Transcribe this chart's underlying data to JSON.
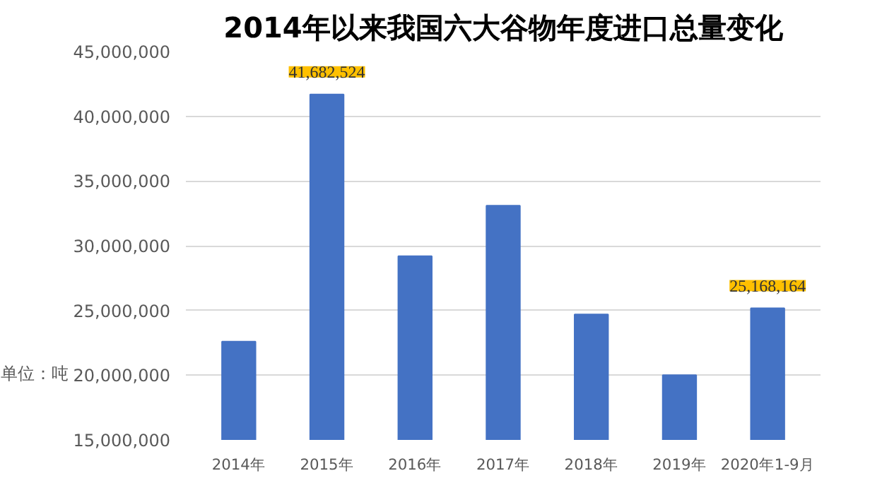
{
  "chart_data": {
    "type": "bar",
    "title": "2014年以来我国六大谷物年度进口总量变化",
    "categories": [
      "2014年",
      "2015年",
      "2016年",
      "2017年",
      "2018年",
      "2019年",
      "2020年1-9月"
    ],
    "values": [
      22600000,
      41682524,
      29200000,
      33100000,
      24700000,
      20000000,
      25168164
    ],
    "value_labels": [
      null,
      "41,682,524",
      null,
      null,
      null,
      null,
      "25,168,164"
    ],
    "color": "#4472c4",
    "ylim": [
      15000000,
      45000000
    ],
    "yticks": [
      {
        "value": 15000000,
        "label": "15,000,000"
      },
      {
        "value": 20000000,
        "label": "20,000,000"
      },
      {
        "value": 25000000,
        "label": "25,000,000"
      },
      {
        "value": 30000000,
        "label": "30,000,000"
      },
      {
        "value": 35000000,
        "label": "35,000,000"
      },
      {
        "value": 40000000,
        "label": "40,000,000"
      },
      {
        "value": 45000000,
        "label": "45,000,000"
      }
    ],
    "grid": "y",
    "annotations": [
      "单位：吨"
    ]
  }
}
